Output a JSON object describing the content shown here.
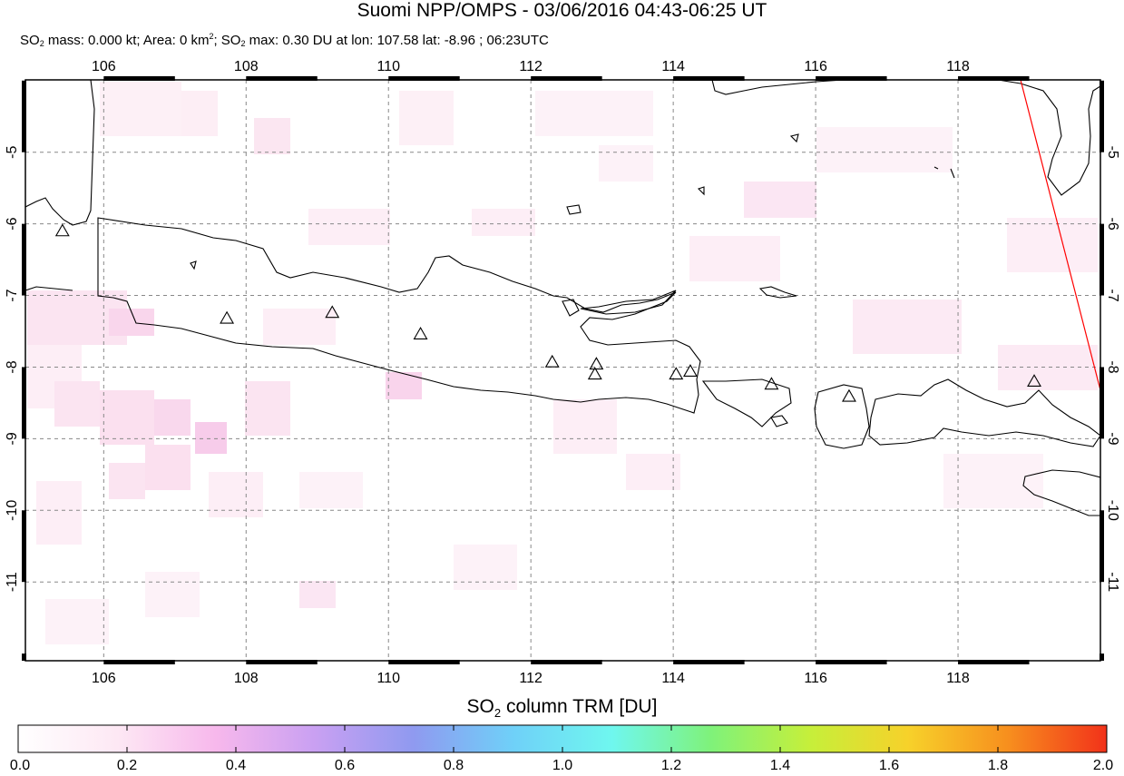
{
  "header": {
    "title": "Suomi NPP/OMPS - 03/06/2016 04:43-06:25 UT",
    "stats": {
      "mass_label": "SO",
      "mass_text": " mass: 0.000 kt; Area: 0 km",
      "so2_max_label": "; SO",
      "max_text": " max: 0.30 DU at lon: 107.58 lat: -8.96 ; 06:23UTC"
    }
  },
  "map": {
    "lon_range": [
      104.9,
      120.0
    ],
    "lat_range": [
      -12.1,
      -3.99
    ],
    "lon_ticks": [
      "106",
      "108",
      "110",
      "112",
      "114",
      "116",
      "118"
    ],
    "lat_ticks": [
      "-5",
      "-6",
      "-7",
      "-8",
      "-9",
      "-10",
      "-11"
    ],
    "gridlines": "dashed",
    "volcano_marker": "triangle-icon",
    "volcanoes": [
      {
        "lon": 105.42,
        "lat": -6.1
      },
      {
        "lon": 107.73,
        "lat": -7.32
      },
      {
        "lon": 109.21,
        "lat": -7.24
      },
      {
        "lon": 110.45,
        "lat": -7.54
      },
      {
        "lon": 112.3,
        "lat": -7.93
      },
      {
        "lon": 112.92,
        "lat": -7.96
      },
      {
        "lon": 112.9,
        "lat": -8.1
      },
      {
        "lon": 114.04,
        "lat": -8.1
      },
      {
        "lon": 114.24,
        "lat": -8.06
      },
      {
        "lon": 115.38,
        "lat": -8.24
      },
      {
        "lon": 116.47,
        "lat": -8.41
      },
      {
        "lon": 119.07,
        "lat": -8.2
      }
    ],
    "swath_edge_color": "#ff0000"
  },
  "colorbar": {
    "title_main": "SO",
    "title_sub": "2",
    "title_rest": " column TRM [DU]",
    "min": 0.0,
    "max": 2.0,
    "tick_labels": [
      "0.0",
      "0.2",
      "0.4",
      "0.6",
      "0.8",
      "1.0",
      "1.2",
      "1.4",
      "1.6",
      "1.8",
      "2.0"
    ],
    "colors": [
      "#ffffff",
      "#fde8f4",
      "#f7b8ec",
      "#c9a0f2",
      "#8f9af0",
      "#6fd0f8",
      "#6ff7ef",
      "#7ff27a",
      "#c6ef3a",
      "#f7d12a",
      "#f78f1e",
      "#f2321a"
    ]
  }
}
